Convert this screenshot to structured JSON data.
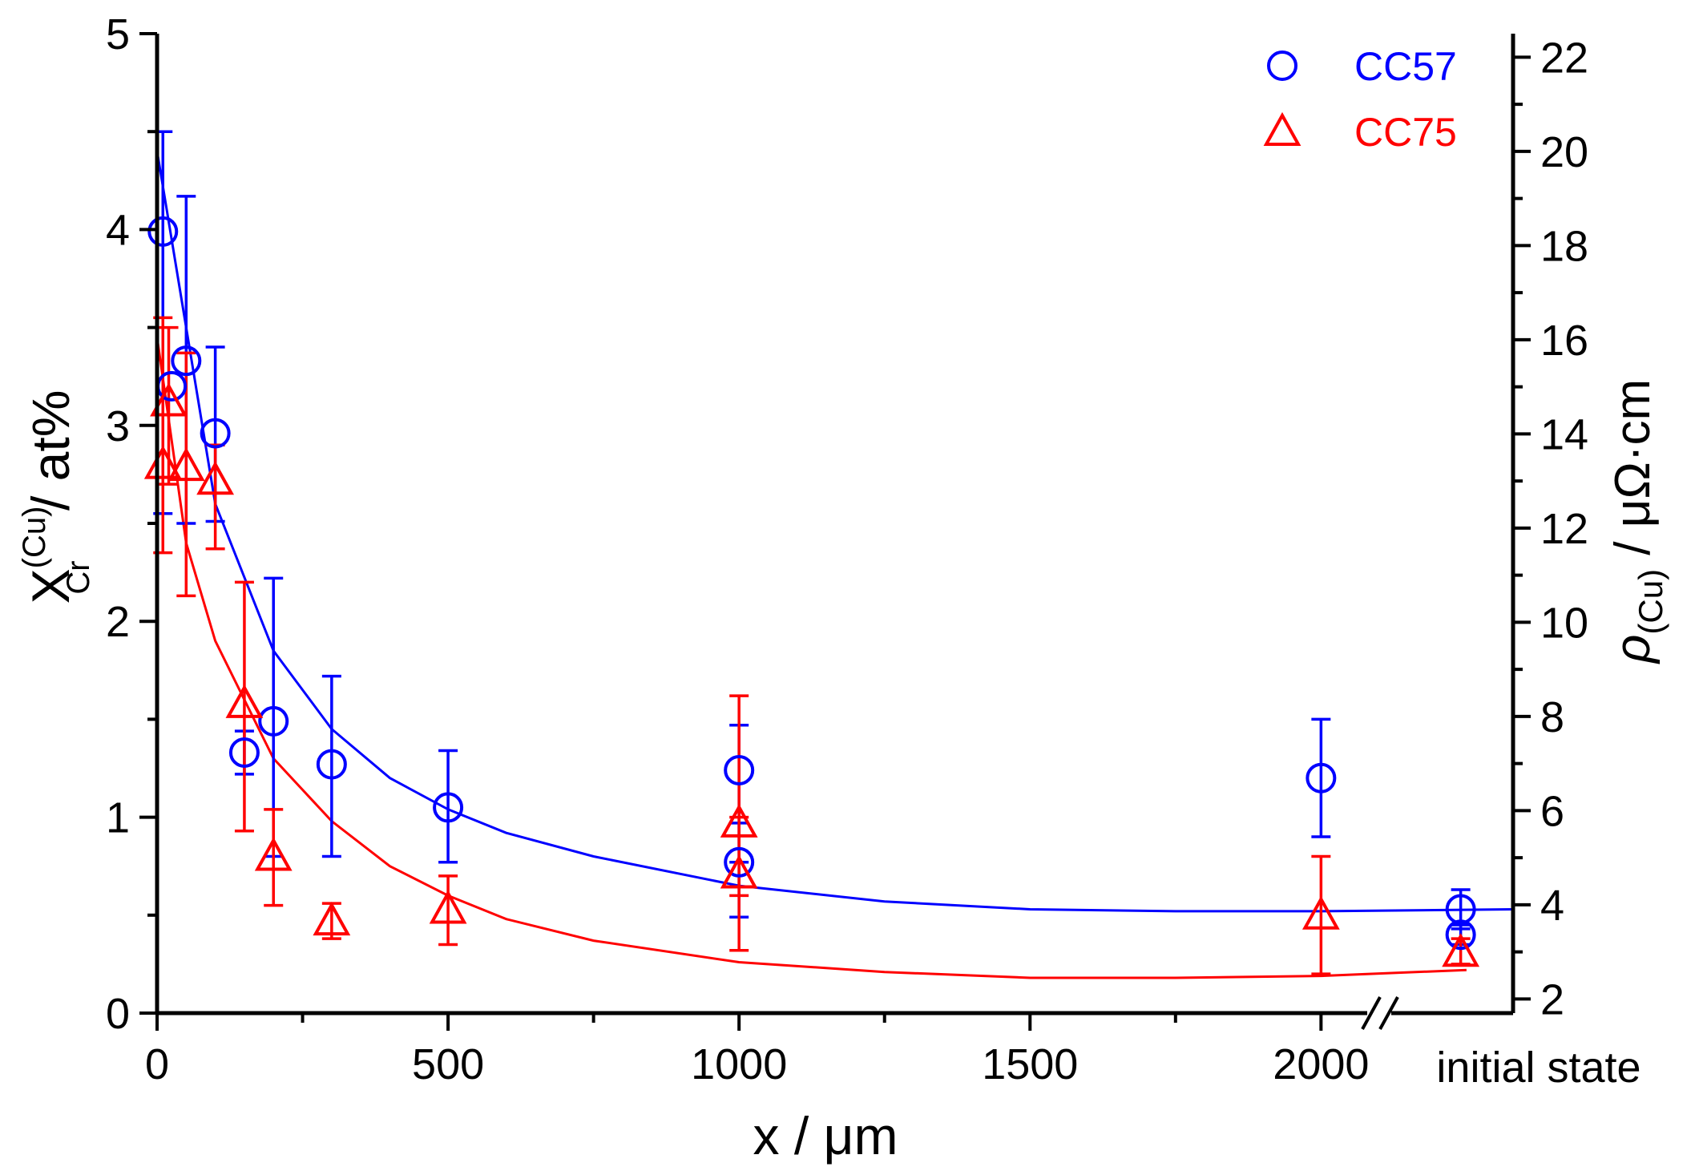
{
  "chart_data": {
    "type": "scatter",
    "title": "",
    "xlabel": "x / μm",
    "ylabel": {
      "main": "X",
      "superscript": "(Cu)",
      "subscript": "Cr",
      "suffix": " / at%"
    },
    "y2label": {
      "main": "ρ",
      "subscript": "(Cu)",
      "suffix": " / μΩ·cm"
    },
    "xlim": [
      0,
      2330
    ],
    "ylim": [
      0,
      5
    ],
    "y2lim": [
      1.7,
      22.5
    ],
    "x_break_label": "initial state",
    "x_ticks": [
      0,
      500,
      1000,
      1500,
      2000
    ],
    "x_tick_labels": [
      "0",
      "500",
      "1000",
      "1500",
      "2000"
    ],
    "y_ticks": [
      0,
      1,
      2,
      3,
      4,
      5
    ],
    "y_tick_labels": [
      "0",
      "1",
      "2",
      "3",
      "4",
      "5"
    ],
    "y2_ticks": [
      2,
      4,
      6,
      8,
      10,
      12,
      14,
      16,
      18,
      20,
      22
    ],
    "y2_tick_labels": [
      "2",
      "4",
      "6",
      "8",
      "10",
      "12",
      "14",
      "16",
      "18",
      "20",
      "22"
    ],
    "legend_position": "top-right",
    "series": [
      {
        "name": "CC57",
        "color": "#0000ff",
        "marker": "circle",
        "points": [
          {
            "x": 10,
            "y": 3.99,
            "err_lo": 2.55,
            "err_hi": 4.5
          },
          {
            "x": 25,
            "y": 3.2,
            "err_lo": 3.2,
            "err_hi": 3.2
          },
          {
            "x": 50,
            "y": 3.33,
            "err_lo": 2.5,
            "err_hi": 4.17
          },
          {
            "x": 100,
            "y": 2.96,
            "err_lo": 2.51,
            "err_hi": 3.4
          },
          {
            "x": 150,
            "y": 1.33,
            "err_lo": 1.22,
            "err_hi": 1.44
          },
          {
            "x": 200,
            "y": 1.49,
            "err_lo": 0.8,
            "err_hi": 2.22
          },
          {
            "x": 300,
            "y": 1.27,
            "err_lo": 0.8,
            "err_hi": 1.72
          },
          {
            "x": 500,
            "y": 1.05,
            "err_lo": 0.77,
            "err_hi": 1.34
          },
          {
            "x": 1000,
            "y": 1.24,
            "err_lo": 0.77,
            "err_hi": 1.47
          },
          {
            "x": 1000,
            "y": 0.77,
            "err_lo": 0.49,
            "err_hi": 0.97
          },
          {
            "x": 2000,
            "y": 1.2,
            "err_lo": 0.9,
            "err_hi": 1.5
          },
          {
            "x": 2240,
            "y": 0.53,
            "err_lo": 0.43,
            "err_hi": 0.63
          },
          {
            "x": 2240,
            "y": 0.4,
            "err_lo": 0.35,
            "err_hi": 0.45
          }
        ],
        "fit": {
          "x": [
            0,
            100,
            200,
            300,
            400,
            500,
            600,
            750,
            1000,
            1250,
            1500,
            1750,
            2000,
            2330
          ],
          "y": [
            4.4,
            2.6,
            1.85,
            1.45,
            1.2,
            1.04,
            0.92,
            0.8,
            0.65,
            0.57,
            0.53,
            0.52,
            0.52,
            0.53
          ]
        }
      },
      {
        "name": "CC75",
        "color": "#ff0000",
        "marker": "triangle",
        "points": [
          {
            "x": 10,
            "y": 2.8,
            "err_lo": 2.35,
            "err_hi": 3.55
          },
          {
            "x": 20,
            "y": 3.12,
            "err_lo": 2.7,
            "err_hi": 3.5
          },
          {
            "x": 50,
            "y": 2.79,
            "err_lo": 2.13,
            "err_hi": 3.37
          },
          {
            "x": 100,
            "y": 2.72,
            "err_lo": 2.37,
            "err_hi": 2.9
          },
          {
            "x": 150,
            "y": 1.58,
            "err_lo": 0.93,
            "err_hi": 2.2
          },
          {
            "x": 200,
            "y": 0.8,
            "err_lo": 0.55,
            "err_hi": 1.04
          },
          {
            "x": 300,
            "y": 0.47,
            "err_lo": 0.38,
            "err_hi": 0.56
          },
          {
            "x": 500,
            "y": 0.53,
            "err_lo": 0.35,
            "err_hi": 0.7
          },
          {
            "x": 1000,
            "y": 0.97,
            "err_lo": 0.6,
            "err_hi": 1.62
          },
          {
            "x": 1000,
            "y": 0.71,
            "err_lo": 0.32,
            "err_hi": 1.0
          },
          {
            "x": 2000,
            "y": 0.5,
            "err_lo": 0.2,
            "err_hi": 0.8
          },
          {
            "x": 2240,
            "y": 0.31,
            "err_lo": 0.25,
            "err_hi": 0.38
          }
        ],
        "fit": {
          "x": [
            0,
            50,
            100,
            150,
            200,
            300,
            400,
            500,
            600,
            750,
            1000,
            1250,
            1500,
            1750,
            2000,
            2250
          ],
          "y": [
            3.45,
            2.4,
            1.9,
            1.6,
            1.3,
            0.98,
            0.75,
            0.6,
            0.48,
            0.37,
            0.26,
            0.21,
            0.18,
            0.18,
            0.19,
            0.22
          ]
        }
      }
    ]
  }
}
